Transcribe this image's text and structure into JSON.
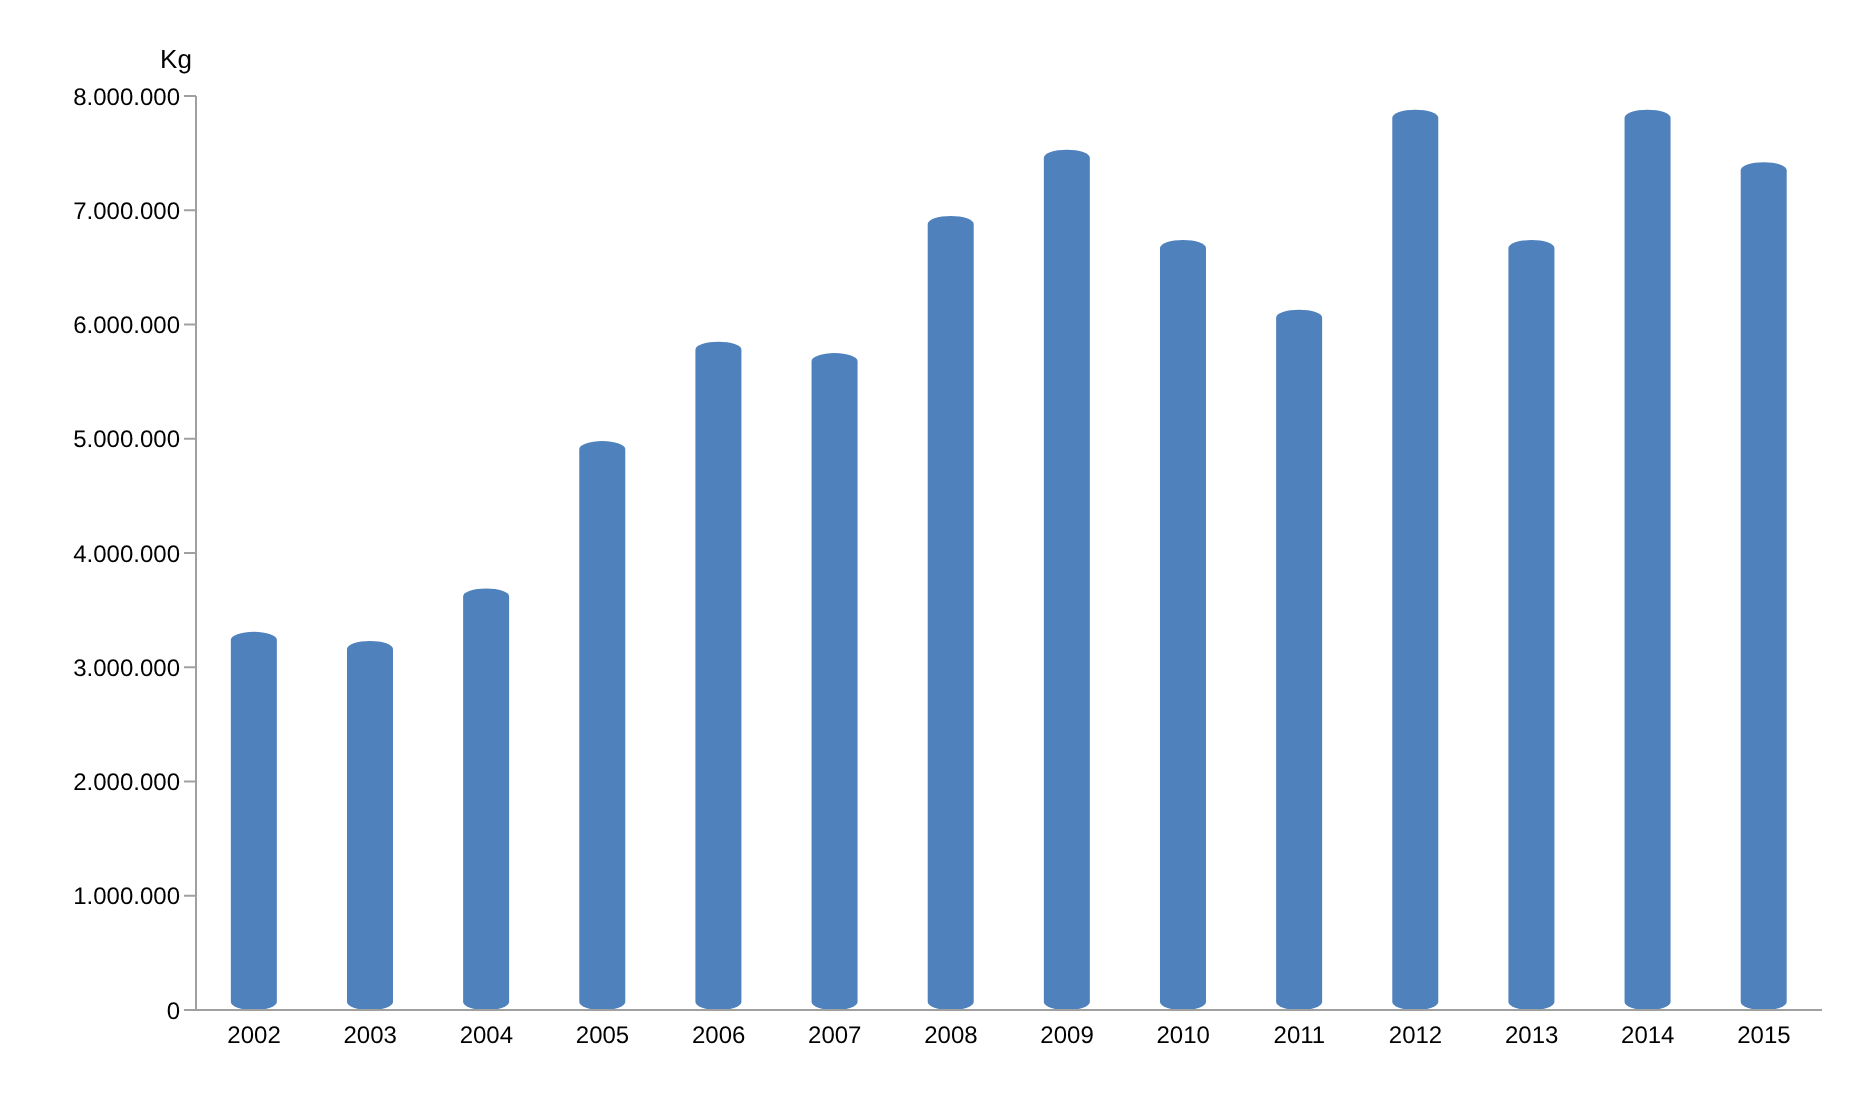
{
  "chart_data": {
    "type": "bar",
    "ylabel": "Kg",
    "categories": [
      "2002",
      "2003",
      "2004",
      "2005",
      "2006",
      "2007",
      "2008",
      "2009",
      "2010",
      "2011",
      "2012",
      "2013",
      "2014",
      "2015"
    ],
    "values": [
      3310000,
      3230000,
      3690000,
      4980000,
      5850000,
      5750000,
      6950000,
      7530000,
      6740000,
      6130000,
      7880000,
      6740000,
      7880000,
      7420000
    ],
    "color": "#4f81bd",
    "ylim": [
      0,
      8000000
    ],
    "yticks": [
      0,
      {
        "value": 1000000,
        "label": "1.000.000"
      },
      {
        "value": 2000000,
        "label": "2.000.000"
      },
      {
        "value": 3000000,
        "label": "3.000.000"
      },
      {
        "value": 4000000,
        "label": "4.000.000"
      },
      {
        "value": 5000000,
        "label": "5.000.000"
      },
      {
        "value": 6000000,
        "label": "6.000.000"
      },
      {
        "value": 7000000,
        "label": "7.000.000"
      },
      {
        "value": 8000000,
        "label": "8.000.000"
      }
    ],
    "grid": false,
    "legend": false
  }
}
